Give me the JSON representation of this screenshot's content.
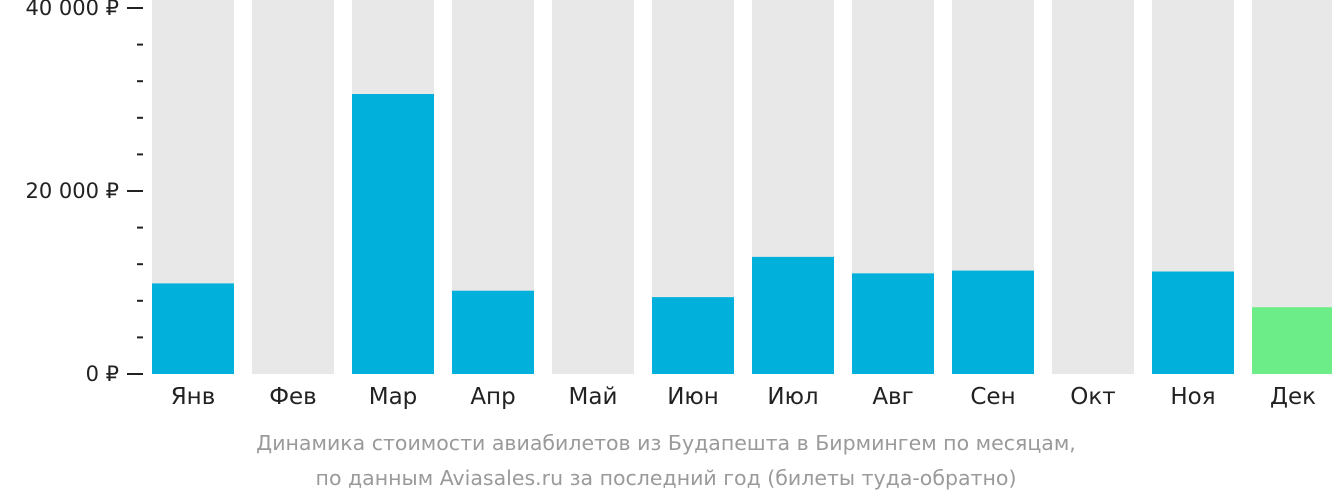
{
  "chart_data": {
    "type": "bar",
    "categories": [
      "Янв",
      "Фев",
      "Мар",
      "Апр",
      "Май",
      "Июн",
      "Июл",
      "Авг",
      "Сен",
      "Окт",
      "Ноя",
      "Дек"
    ],
    "values": [
      9900,
      null,
      30600,
      9100,
      null,
      8400,
      12800,
      11000,
      11300,
      null,
      11200,
      7300
    ],
    "highlight_index": 11,
    "ylim": [
      0,
      40000
    ],
    "y_ticks": [
      {
        "value": 40000,
        "label": "40 000 ₽"
      },
      {
        "value": 20000,
        "label": "20 000 ₽"
      },
      {
        "value": 0,
        "label": "0 ₽"
      }
    ],
    "minor_tick_step": 4000,
    "grid": false,
    "legend": "none",
    "title": "",
    "xlabel": "",
    "ylabel": ""
  },
  "caption": {
    "line1": "Динамика стоимости авиабилетов из Будапешта в Бирмингем по месяцам,",
    "line2": "по данным Aviasales.ru за последний год (билеты туда-обратно)"
  },
  "colors": {
    "bar": "#02b0dc",
    "bar_highlight": "#6ded87",
    "background_column": "#e8e8e8",
    "axis": "#222222",
    "caption": "#9a9a9a"
  }
}
